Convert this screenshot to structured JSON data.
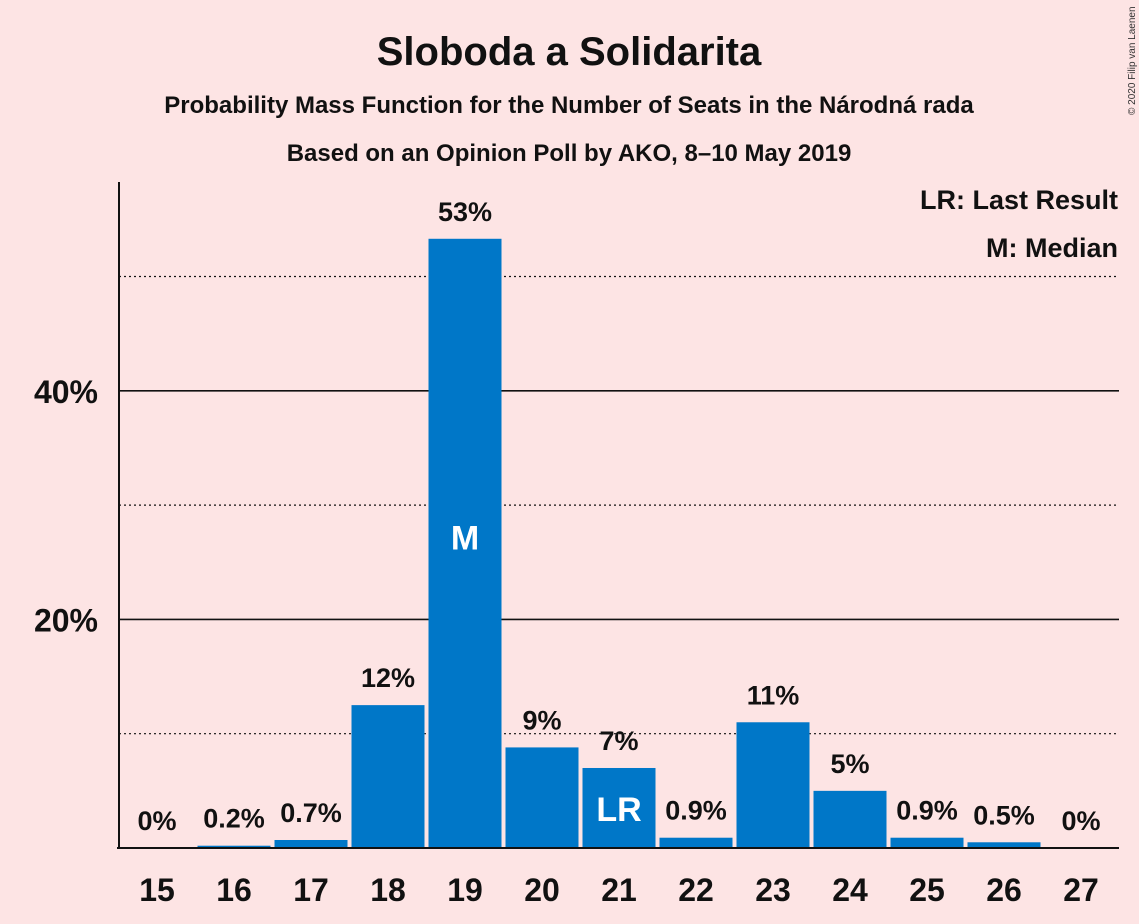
{
  "chart_data": {
    "type": "bar",
    "title": "Sloboda a Solidarita",
    "subtitle": "Probability Mass Function for the Number of Seats in the Národná rada",
    "subtitle2": "Based on an Opinion Poll by AKO, 8–10 May 2019",
    "copyright": "© 2020 Filip van Laenen",
    "legend": [
      "LR: Last Result",
      "M: Median"
    ],
    "categories": [
      "15",
      "16",
      "17",
      "18",
      "19",
      "20",
      "21",
      "22",
      "23",
      "24",
      "25",
      "26",
      "27"
    ],
    "values": [
      0,
      0.2,
      0.7,
      12.5,
      53.3,
      8.8,
      7.0,
      0.9,
      11.0,
      5.0,
      0.9,
      0.5,
      0
    ],
    "value_labels": [
      "0%",
      "0.2%",
      "0.7%",
      "12%",
      "53%",
      "9%",
      "7%",
      "0.9%",
      "11%",
      "5%",
      "0.9%",
      "0.5%",
      "0%"
    ],
    "markers": {
      "19": "M",
      "21": "LR"
    },
    "y_ticks": [
      20,
      40
    ],
    "y_tick_labels": [
      "20%",
      "40%"
    ],
    "y_gridlines_dotted": [
      10,
      30,
      50
    ],
    "ylim": [
      0,
      58
    ],
    "bar_color": "#0077c8",
    "background": "#fde4e4",
    "legend_position": "top-right"
  }
}
